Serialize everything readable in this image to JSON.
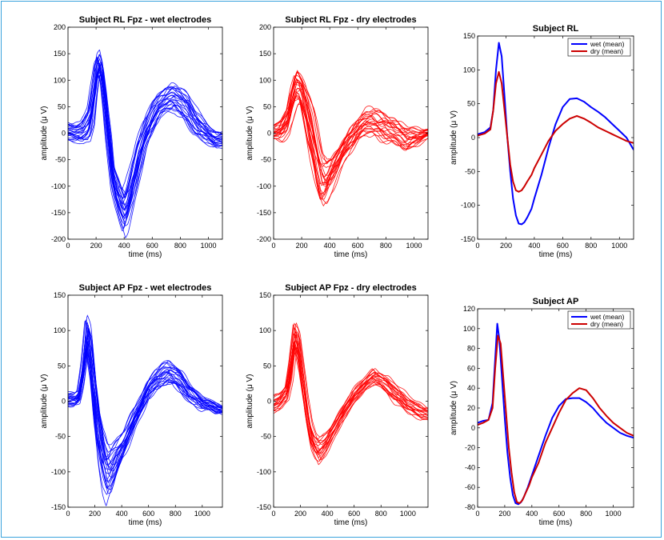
{
  "figure": {
    "accent_border_color": "#3aa3dc"
  },
  "chart_data": [
    {
      "type": "line",
      "title": "Subject RL Fpz - wet electrodes",
      "xlabel": "time (ms)",
      "ylabel": "amplitude (μ V)",
      "xlim": [
        0,
        1100
      ],
      "ylim": [
        -200,
        200
      ],
      "xticks": [
        "0",
        "200",
        "400",
        "600",
        "800",
        "1000"
      ],
      "yticks": [
        "-200",
        "-150",
        "-100",
        "-50",
        "0",
        "50",
        "100",
        "150",
        "200"
      ],
      "color": "#0000ff",
      "trial_count": 24,
      "envelope": {
        "x": [
          0,
          50,
          100,
          150,
          180,
          200,
          220,
          240,
          260,
          280,
          300,
          320,
          350,
          380,
          400,
          420,
          450,
          500,
          550,
          600,
          650,
          700,
          750,
          800,
          850,
          900,
          950,
          1000,
          1050,
          1100
        ],
        "min": [
          -20,
          -20,
          -25,
          -20,
          5,
          60,
          100,
          90,
          40,
          -20,
          -70,
          -120,
          -160,
          -185,
          -200,
          -190,
          -160,
          -100,
          -40,
          -10,
          20,
          30,
          35,
          25,
          10,
          -10,
          -20,
          -25,
          -35,
          -30
        ],
        "max": [
          25,
          20,
          30,
          60,
          120,
          155,
          162,
          140,
          95,
          50,
          10,
          -50,
          -70,
          -90,
          -100,
          -85,
          -50,
          5,
          40,
          70,
          85,
          95,
          100,
          95,
          85,
          60,
          40,
          20,
          10,
          5
        ]
      }
    },
    {
      "type": "line",
      "title": "Subject RL Fpz - dry electrodes",
      "xlabel": "time (ms)",
      "ylabel": "amplitude (μ V)",
      "xlim": [
        0,
        1100
      ],
      "ylim": [
        -200,
        200
      ],
      "xticks": [
        "0",
        "200",
        "400",
        "600",
        "800",
        "1000"
      ],
      "yticks": [
        "-200",
        "-150",
        "-100",
        "-50",
        "0",
        "50",
        "100",
        "150",
        "200"
      ],
      "color": "#ff0000",
      "trial_count": 24,
      "envelope": {
        "x": [
          0,
          50,
          100,
          130,
          160,
          190,
          220,
          250,
          280,
          310,
          340,
          370,
          400,
          450,
          500,
          550,
          600,
          650,
          700,
          750,
          800,
          850,
          900,
          950,
          1000,
          1050,
          1100
        ],
        "min": [
          -15,
          -20,
          -10,
          10,
          40,
          50,
          10,
          -40,
          -80,
          -120,
          -150,
          -145,
          -120,
          -90,
          -60,
          -40,
          -20,
          -10,
          -10,
          -20,
          -25,
          -30,
          -35,
          -40,
          -30,
          -20,
          -10
        ],
        "max": [
          20,
          30,
          60,
          110,
          135,
          120,
          110,
          90,
          60,
          20,
          -20,
          -40,
          -40,
          -20,
          0,
          20,
          35,
          50,
          55,
          50,
          45,
          40,
          30,
          20,
          15,
          10,
          10
        ]
      }
    },
    {
      "type": "line",
      "title": "Subject RL",
      "xlabel": "time (ms)",
      "ylabel": "amplitude (μ V)",
      "xlim": [
        0,
        1100
      ],
      "ylim": [
        -150,
        150
      ],
      "xticks": [
        "0",
        "200",
        "400",
        "600",
        "800",
        "1000"
      ],
      "yticks": [
        "-150",
        "-100",
        "-50",
        "0",
        "50",
        "100",
        "150"
      ],
      "legend": "top-right",
      "series": [
        {
          "name": "wet (mean)",
          "color": "#0000ff",
          "x": [
            0,
            50,
            90,
            110,
            130,
            150,
            170,
            190,
            210,
            230,
            250,
            270,
            290,
            310,
            330,
            350,
            380,
            400,
            450,
            500,
            550,
            600,
            650,
            700,
            750,
            800,
            850,
            900,
            950,
            1000,
            1050,
            1100
          ],
          "values": [
            5,
            8,
            15,
            40,
            100,
            140,
            120,
            60,
            0,
            -50,
            -90,
            -115,
            -127,
            -128,
            -125,
            -118,
            -105,
            -90,
            -55,
            -15,
            20,
            45,
            57,
            58,
            53,
            45,
            38,
            30,
            20,
            10,
            0,
            -18
          ]
        },
        {
          "name": "dry (mean)",
          "color": "#cc0000",
          "x": [
            0,
            50,
            90,
            110,
            130,
            150,
            170,
            190,
            210,
            230,
            250,
            270,
            290,
            310,
            330,
            350,
            380,
            400,
            450,
            500,
            550,
            600,
            650,
            700,
            750,
            800,
            850,
            900,
            950,
            1000,
            1050,
            1100
          ],
          "values": [
            3,
            6,
            12,
            40,
            80,
            97,
            80,
            40,
            0,
            -40,
            -65,
            -78,
            -80,
            -78,
            -72,
            -65,
            -55,
            -45,
            -25,
            -5,
            10,
            20,
            28,
            32,
            28,
            22,
            15,
            10,
            5,
            0,
            -5,
            -8
          ]
        }
      ]
    },
    {
      "type": "line",
      "title": "Subject AP Fpz - wet electrodes",
      "xlabel": "time (ms)",
      "ylabel": "amplitude (μ V)",
      "xlim": [
        0,
        1150
      ],
      "ylim": [
        -150,
        150
      ],
      "xticks": [
        "0",
        "200",
        "400",
        "600",
        "800",
        "1000"
      ],
      "yticks": [
        "-150",
        "-100",
        "-50",
        "0",
        "50",
        "100",
        "150"
      ],
      "color": "#0000ff",
      "trial_count": 24,
      "envelope": {
        "x": [
          0,
          50,
          80,
          110,
          140,
          170,
          200,
          230,
          260,
          290,
          320,
          350,
          380,
          420,
          460,
          500,
          550,
          600,
          650,
          700,
          750,
          800,
          850,
          900,
          950,
          1000,
          1050,
          1100,
          1150
        ],
        "min": [
          -10,
          -10,
          -5,
          20,
          60,
          20,
          -50,
          -100,
          -130,
          -150,
          -140,
          -120,
          -100,
          -80,
          -60,
          -40,
          -20,
          0,
          10,
          15,
          20,
          15,
          5,
          -5,
          -10,
          -15,
          -15,
          -20,
          -20
        ],
        "max": [
          15,
          15,
          20,
          60,
          126,
          110,
          50,
          0,
          -30,
          -45,
          -50,
          -50,
          -45,
          -35,
          -20,
          -5,
          15,
          35,
          50,
          58,
          62,
          55,
          45,
          30,
          20,
          10,
          5,
          0,
          -5
        ]
      }
    },
    {
      "type": "line",
      "title": "Subject AP Fpz - dry electrodes",
      "xlabel": "time (ms)",
      "ylabel": "amplitude (μ V)",
      "xlim": [
        0,
        1150
      ],
      "ylim": [
        -150,
        150
      ],
      "xticks": [
        "0",
        "200",
        "400",
        "600",
        "800",
        "1000"
      ],
      "yticks": [
        "-150",
        "-100",
        "-50",
        "0",
        "50",
        "100",
        "150"
      ],
      "color": "#ff0000",
      "trial_count": 20,
      "envelope": {
        "x": [
          0,
          50,
          100,
          130,
          160,
          190,
          220,
          250,
          280,
          310,
          340,
          370,
          400,
          450,
          500,
          550,
          600,
          650,
          700,
          750,
          800,
          850,
          900,
          950,
          1000,
          1050,
          1100,
          1150
        ],
        "min": [
          -20,
          -15,
          -5,
          20,
          65,
          40,
          0,
          -40,
          -70,
          -85,
          -95,
          -85,
          -75,
          -55,
          -35,
          -20,
          -5,
          5,
          15,
          20,
          15,
          5,
          -5,
          -10,
          -20,
          -25,
          -30,
          -30
        ],
        "max": [
          10,
          15,
          30,
          70,
          120,
          110,
          60,
          10,
          -25,
          -40,
          -45,
          -45,
          -40,
          -25,
          -10,
          5,
          20,
          30,
          40,
          50,
          45,
          40,
          30,
          20,
          10,
          5,
          0,
          -5
        ]
      }
    },
    {
      "type": "line",
      "title": "Subject AP",
      "xlabel": "time (ms)",
      "ylabel": "amplitude (μ V)",
      "xlim": [
        0,
        1150
      ],
      "ylim": [
        -80,
        120
      ],
      "xticks": [
        "0",
        "200",
        "400",
        "600",
        "800",
        "1000"
      ],
      "yticks": [
        "-80",
        "-60",
        "-40",
        "-20",
        "0",
        "20",
        "40",
        "60",
        "80",
        "100",
        "120"
      ],
      "legend": "top-right",
      "series": [
        {
          "name": "wet (mean)",
          "color": "#0000ff",
          "x": [
            0,
            40,
            80,
            110,
            130,
            145,
            160,
            180,
            200,
            220,
            240,
            260,
            280,
            300,
            320,
            340,
            370,
            400,
            450,
            500,
            550,
            600,
            650,
            700,
            750,
            800,
            850,
            900,
            950,
            1000,
            1050,
            1100,
            1150
          ],
          "values": [
            5,
            7,
            8,
            25,
            70,
            105,
            90,
            50,
            10,
            -25,
            -50,
            -68,
            -76,
            -77,
            -75,
            -70,
            -60,
            -48,
            -28,
            -8,
            10,
            22,
            29,
            30,
            30,
            26,
            20,
            12,
            5,
            0,
            -5,
            -8,
            -10
          ]
        },
        {
          "name": "dry (mean)",
          "color": "#cc0000",
          "x": [
            0,
            40,
            80,
            110,
            130,
            150,
            170,
            190,
            210,
            230,
            250,
            270,
            290,
            310,
            330,
            350,
            380,
            400,
            450,
            500,
            550,
            600,
            650,
            700,
            750,
            800,
            850,
            900,
            950,
            1000,
            1050,
            1100,
            1150
          ],
          "values": [
            3,
            5,
            8,
            20,
            60,
            93,
            85,
            50,
            15,
            -20,
            -45,
            -65,
            -75,
            -76,
            -73,
            -67,
            -58,
            -50,
            -35,
            -15,
            0,
            15,
            28,
            35,
            40,
            38,
            30,
            20,
            12,
            5,
            0,
            -5,
            -8
          ]
        }
      ]
    }
  ]
}
